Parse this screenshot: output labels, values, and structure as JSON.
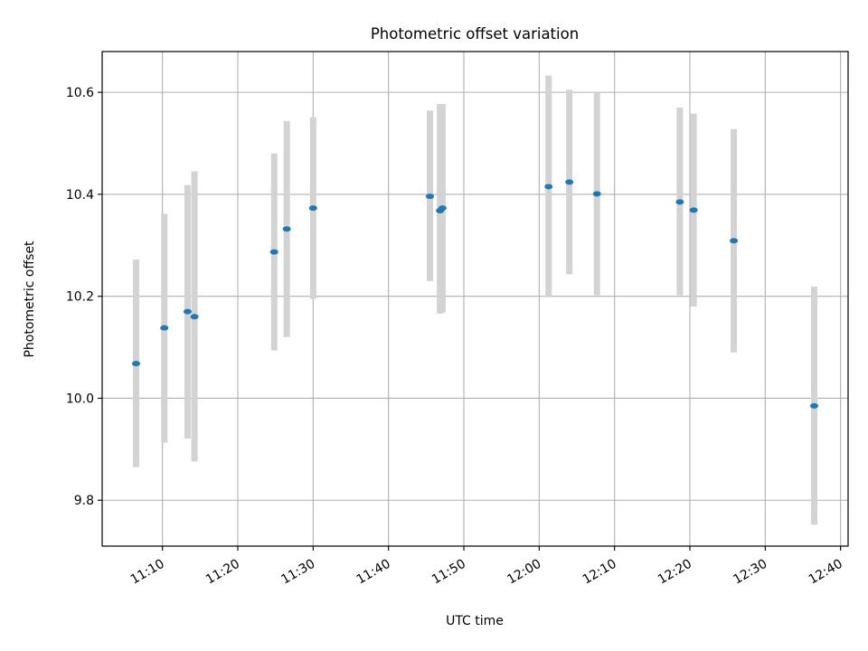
{
  "chart_data": {
    "type": "scatter",
    "title": "Photometric offset variation",
    "xlabel": "UTC time",
    "ylabel": "Photometric offset",
    "x_ticks": [
      "11:10",
      "11:20",
      "11:30",
      "11:40",
      "11:50",
      "12:00",
      "12:10",
      "12:20",
      "12:30",
      "12:40"
    ],
    "y_ticks": [
      "9.8",
      "10.0",
      "10.2",
      "10.4",
      "10.6"
    ],
    "xlim": [
      "11:02",
      "12:41"
    ],
    "ylim": [
      9.71,
      10.68
    ],
    "grid": true,
    "point_color": "#1f77b4",
    "errorbar_color": "#d3d3d3",
    "points": [
      {
        "time": "11:06:30",
        "y": 10.068,
        "y_low": 9.865,
        "y_high": 10.272
      },
      {
        "time": "11:10:15",
        "y": 10.138,
        "y_low": 9.913,
        "y_high": 10.362
      },
      {
        "time": "11:13:20",
        "y": 10.17,
        "y_low": 9.921,
        "y_high": 10.418
      },
      {
        "time": "11:14:15",
        "y": 10.16,
        "y_low": 9.876,
        "y_high": 10.445
      },
      {
        "time": "11:24:50",
        "y": 10.287,
        "y_low": 10.094,
        "y_high": 10.48
      },
      {
        "time": "11:26:30",
        "y": 10.332,
        "y_low": 10.12,
        "y_high": 10.544
      },
      {
        "time": "11:30:00",
        "y": 10.373,
        "y_low": 10.195,
        "y_high": 10.551
      },
      {
        "time": "11:45:30",
        "y": 10.396,
        "y_low": 10.23,
        "y_high": 10.564
      },
      {
        "time": "11:46:50",
        "y": 10.368,
        "y_low": 10.166,
        "y_high": 10.577
      },
      {
        "time": "11:47:10",
        "y": 10.373,
        "y_low": 10.168,
        "y_high": 10.577
      },
      {
        "time": "12:01:15",
        "y": 10.415,
        "y_low": 10.198,
        "y_high": 10.633
      },
      {
        "time": "12:04:00",
        "y": 10.424,
        "y_low": 10.243,
        "y_high": 10.605
      },
      {
        "time": "12:07:40",
        "y": 10.401,
        "y_low": 10.202,
        "y_high": 10.6
      },
      {
        "time": "12:18:40",
        "y": 10.385,
        "y_low": 10.202,
        "y_high": 10.57
      },
      {
        "time": "12:20:30",
        "y": 10.369,
        "y_low": 10.18,
        "y_high": 10.558
      },
      {
        "time": "12:25:50",
        "y": 10.309,
        "y_low": 10.09,
        "y_high": 10.528
      },
      {
        "time": "12:36:30",
        "y": 9.985,
        "y_low": 9.752,
        "y_high": 10.219
      }
    ]
  }
}
